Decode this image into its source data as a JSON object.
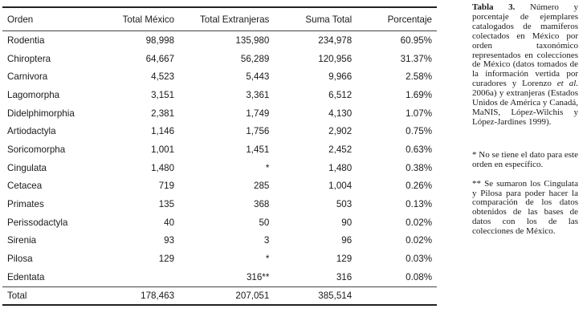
{
  "table": {
    "headers": [
      "Orden",
      "Total México",
      "Total Extranjeras",
      "Suma Total",
      "Porcentaje"
    ],
    "rows": [
      [
        "Rodentia",
        "98,998",
        "135,980",
        "234,978",
        "60.95%"
      ],
      [
        "Chiroptera",
        "64,667",
        "56,289",
        "120,956",
        "31.37%"
      ],
      [
        "Carnivora",
        "4,523",
        "5,443",
        "9,966",
        "2.58%"
      ],
      [
        "Lagomorpha",
        "3,151",
        "3,361",
        "6,512",
        "1.69%"
      ],
      [
        "Didelphimorphia",
        "2,381",
        "1,749",
        "4,130",
        "1.07%"
      ],
      [
        "Artiodactyla",
        "1,146",
        "1,756",
        "2,902",
        "0.75%"
      ],
      [
        "Soricomorpha",
        "1,001",
        "1,451",
        "2,452",
        "0.63%"
      ],
      [
        "Cingulata",
        "1,480",
        "*",
        "1,480",
        "0.38%"
      ],
      [
        "Cetacea",
        "719",
        "285",
        "1,004",
        "0.26%"
      ],
      [
        "Primates",
        "135",
        "368",
        "503",
        "0.13%"
      ],
      [
        "Perissodactyla",
        "40",
        "50",
        "90",
        "0.02%"
      ],
      [
        "Sirenia",
        "93",
        "3",
        "96",
        "0.02%"
      ],
      [
        "Pilosa",
        "129",
        "*",
        "129",
        "0.03%"
      ],
      [
        "Edentata",
        "",
        "316**",
        "316",
        "0.08%"
      ]
    ],
    "total": [
      "Total",
      "178,463",
      "207,051",
      "385,514",
      ""
    ]
  },
  "caption": {
    "label": "Tabla 3.",
    "text_1": "Número y porcentaje de ejemplares catalogados de mamíferos colectados en México por orden taxonómico representados en colecciones de México (datos tomados de la información vertida por curadores y Lorenzo ",
    "et_al": "et al.",
    "text_2": " 2006a) y extranjeras (Estados Unidos de América y Canadá, MaNIS, López-Wilchis y López-Jardines 1999).",
    "note_1": "* No se tiene el dato para este orden en específico.",
    "note_2": "** Se sumaron los Cingulata y Pilosa para poder hacer la comparación de los datos obtenidos de las bases de datos con los de las colecciones de México."
  }
}
